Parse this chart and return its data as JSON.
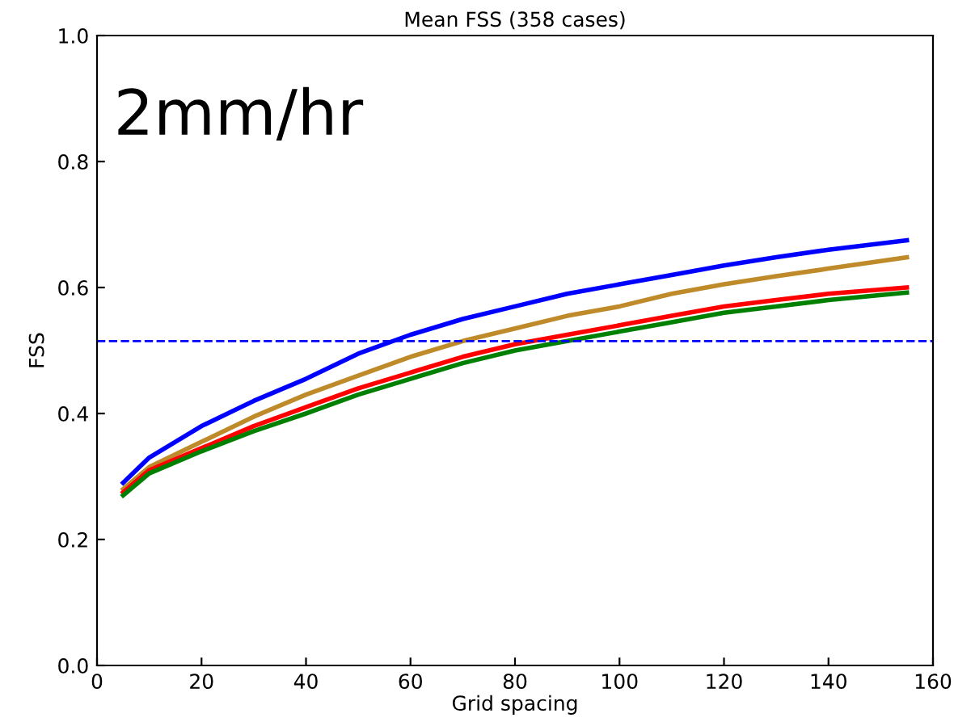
{
  "chart_data": {
    "type": "line",
    "title": "Mean FSS (358 cases)",
    "xlabel": "Grid spacing",
    "ylabel": "FSS",
    "annotations": [
      "2mm/hr"
    ],
    "x": [
      5,
      10,
      20,
      30,
      40,
      50,
      60,
      70,
      80,
      90,
      100,
      110,
      120,
      130,
      140,
      155
    ],
    "series": [
      {
        "color": "#0000ff",
        "values": [
          0.29,
          0.33,
          0.38,
          0.42,
          0.455,
          0.495,
          0.525,
          0.55,
          0.57,
          0.59,
          0.605,
          0.62,
          0.635,
          0.648,
          0.66,
          0.675
        ]
      },
      {
        "color": "#bf8a2a",
        "values": [
          0.28,
          0.315,
          0.355,
          0.395,
          0.43,
          0.46,
          0.49,
          0.515,
          0.535,
          0.555,
          0.57,
          0.59,
          0.605,
          0.618,
          0.63,
          0.648
        ]
      },
      {
        "color": "#ff0000",
        "values": [
          0.275,
          0.31,
          0.345,
          0.38,
          0.41,
          0.44,
          0.465,
          0.49,
          0.51,
          0.525,
          0.54,
          0.555,
          0.57,
          0.58,
          0.59,
          0.6
        ]
      },
      {
        "color": "#008000",
        "values": [
          0.27,
          0.305,
          0.34,
          0.372,
          0.4,
          0.43,
          0.455,
          0.48,
          0.5,
          0.515,
          0.53,
          0.545,
          0.56,
          0.57,
          0.58,
          0.592
        ]
      }
    ],
    "ref_lines": [
      {
        "axis": "y",
        "value": 0.515,
        "color": "#0000ff",
        "line_style": "dashed"
      }
    ],
    "xlim": [
      0,
      160
    ],
    "ylim": [
      0,
      1
    ],
    "xticks": [
      0,
      20,
      40,
      60,
      80,
      100,
      120,
      140,
      160
    ],
    "yticks": [
      {
        "value": 0,
        "label": "0.0"
      },
      {
        "value": 0.2,
        "label": "0.2"
      },
      {
        "value": 0.4,
        "label": "0.4"
      },
      {
        "value": 0.6,
        "label": "0.6"
      },
      {
        "value": 0.8,
        "label": "0.8"
      },
      {
        "value": 1,
        "label": "1.0"
      }
    ],
    "grid": false,
    "legend": false
  }
}
